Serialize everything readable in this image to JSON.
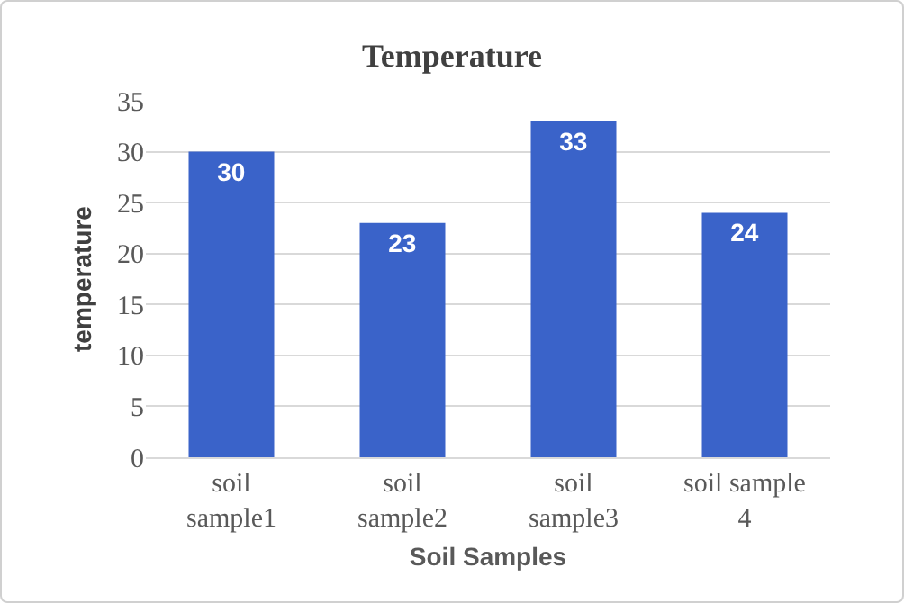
{
  "chart_data": {
    "type": "bar",
    "title": "Temperature",
    "xlabel": "Soil Samples",
    "ylabel": "temperature",
    "categories": [
      "soil sample1",
      "soil sample2",
      "soil sample3",
      "soil sample 4"
    ],
    "values": [
      30,
      23,
      33,
      24
    ],
    "color": "#3a63c9",
    "ylim": [
      0,
      35
    ],
    "yticks": [
      0,
      5,
      10,
      15,
      20,
      25,
      30,
      35
    ],
    "grid": "y",
    "data_labels": true
  }
}
